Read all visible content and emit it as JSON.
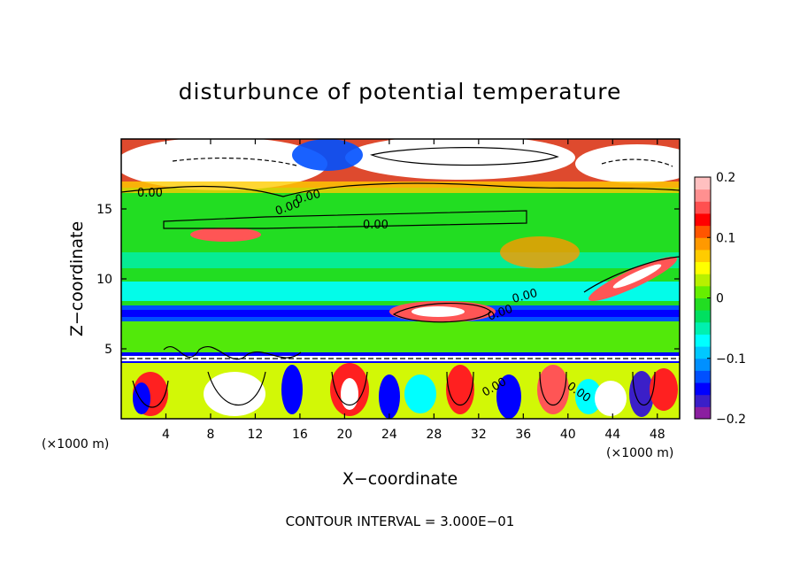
{
  "chart_data": {
    "type": "heatmap",
    "title": "disturbunce of potential temperature",
    "xlabel": "X−coordinate",
    "ylabel": "Z−coordinate",
    "x_unit": "(×1000 m)",
    "z_unit": "(×1000 m)",
    "xlim": [
      0,
      50
    ],
    "ylim": [
      0,
      20
    ],
    "x_ticks": [
      4,
      8,
      12,
      16,
      20,
      24,
      28,
      32,
      36,
      40,
      44,
      48
    ],
    "y_ticks": [
      5,
      10,
      15
    ],
    "colorbar": {
      "range": [
        -0.2,
        0.2
      ],
      "ticks": [
        0.2,
        0.1,
        0,
        -0.1,
        -0.2
      ],
      "tick_labels": [
        "0.2",
        "0.1",
        "0",
        "−0.1",
        "−0.2"
      ],
      "colors": [
        "#8b1fa0",
        "#3b1fc8",
        "#0000ff",
        "#0050ff",
        "#0090ff",
        "#00c8ff",
        "#00ffff",
        "#00f0b0",
        "#00e060",
        "#22dd22",
        "#66ee00",
        "#b8f000",
        "#ffff00",
        "#ffcc00",
        "#ff9900",
        "#ff5500",
        "#ff0000",
        "#ff5050",
        "#ff9090",
        "#ffc0c0"
      ]
    },
    "contour_labels": [
      "0.00",
      "0.00",
      "0.00",
      "0.00",
      "0.00",
      "0.00",
      "0.00",
      "0.00"
    ],
    "contour_interval_text": "CONTOUR INTERVAL = 3.000E−01"
  }
}
